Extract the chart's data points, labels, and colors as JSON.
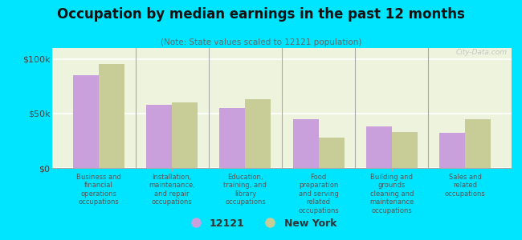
{
  "title": "Occupation by median earnings in the past 12 months",
  "subtitle": "(Note: State values scaled to 12121 population)",
  "categories": [
    "Business and\nfinancial\noperations\noccupations",
    "Installation,\nmaintenance,\nand repair\noccupations",
    "Education,\ntraining, and\nlibrary\noccupations",
    "Food\npreparation\nand serving\nrelated\noccupations",
    "Building and\ngrounds\ncleaning and\nmaintenance\noccupations",
    "Sales and\nrelated\noccupations"
  ],
  "values_12121": [
    85000,
    58000,
    55000,
    45000,
    38000,
    32000
  ],
  "values_newyork": [
    95000,
    60000,
    63000,
    28000,
    33000,
    45000
  ],
  "color_12121": "#c9a0dc",
  "color_newyork": "#c8cc96",
  "background_outer": "#00e5ff",
  "background_inner": "#eef3de",
  "yticks": [
    0,
    50000,
    100000
  ],
  "ytick_labels": [
    "$0",
    "$50k",
    "$100k"
  ],
  "ylim": [
    0,
    110000
  ],
  "legend_label_1": "12121",
  "legend_label_2": "New York",
  "watermark": "City-Data.com",
  "bar_width": 0.35
}
